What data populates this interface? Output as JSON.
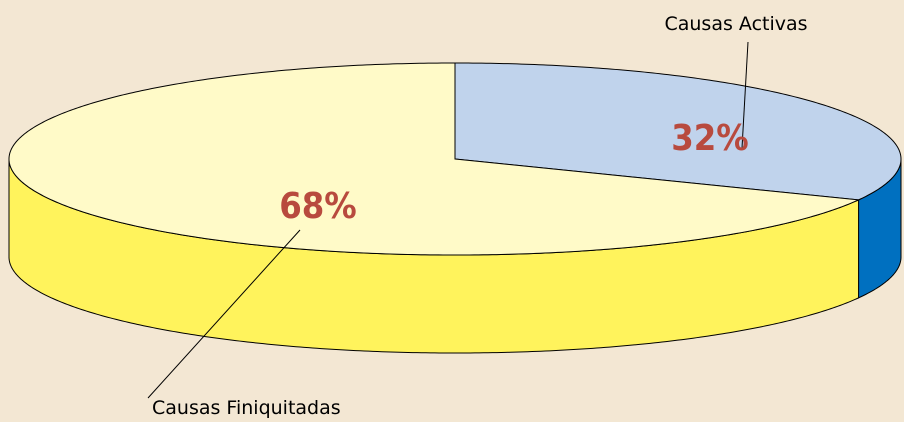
{
  "chart_data": {
    "type": "pie",
    "categories": [
      "Causas Activas",
      "Causas Finiquitadas"
    ],
    "values": [
      32,
      68
    ],
    "value_labels": [
      "32%",
      "68%"
    ],
    "colors": [
      "#c0d3ec",
      "#fffac8"
    ],
    "side_colors": [
      "#0070c0",
      "#fff35c"
    ]
  }
}
